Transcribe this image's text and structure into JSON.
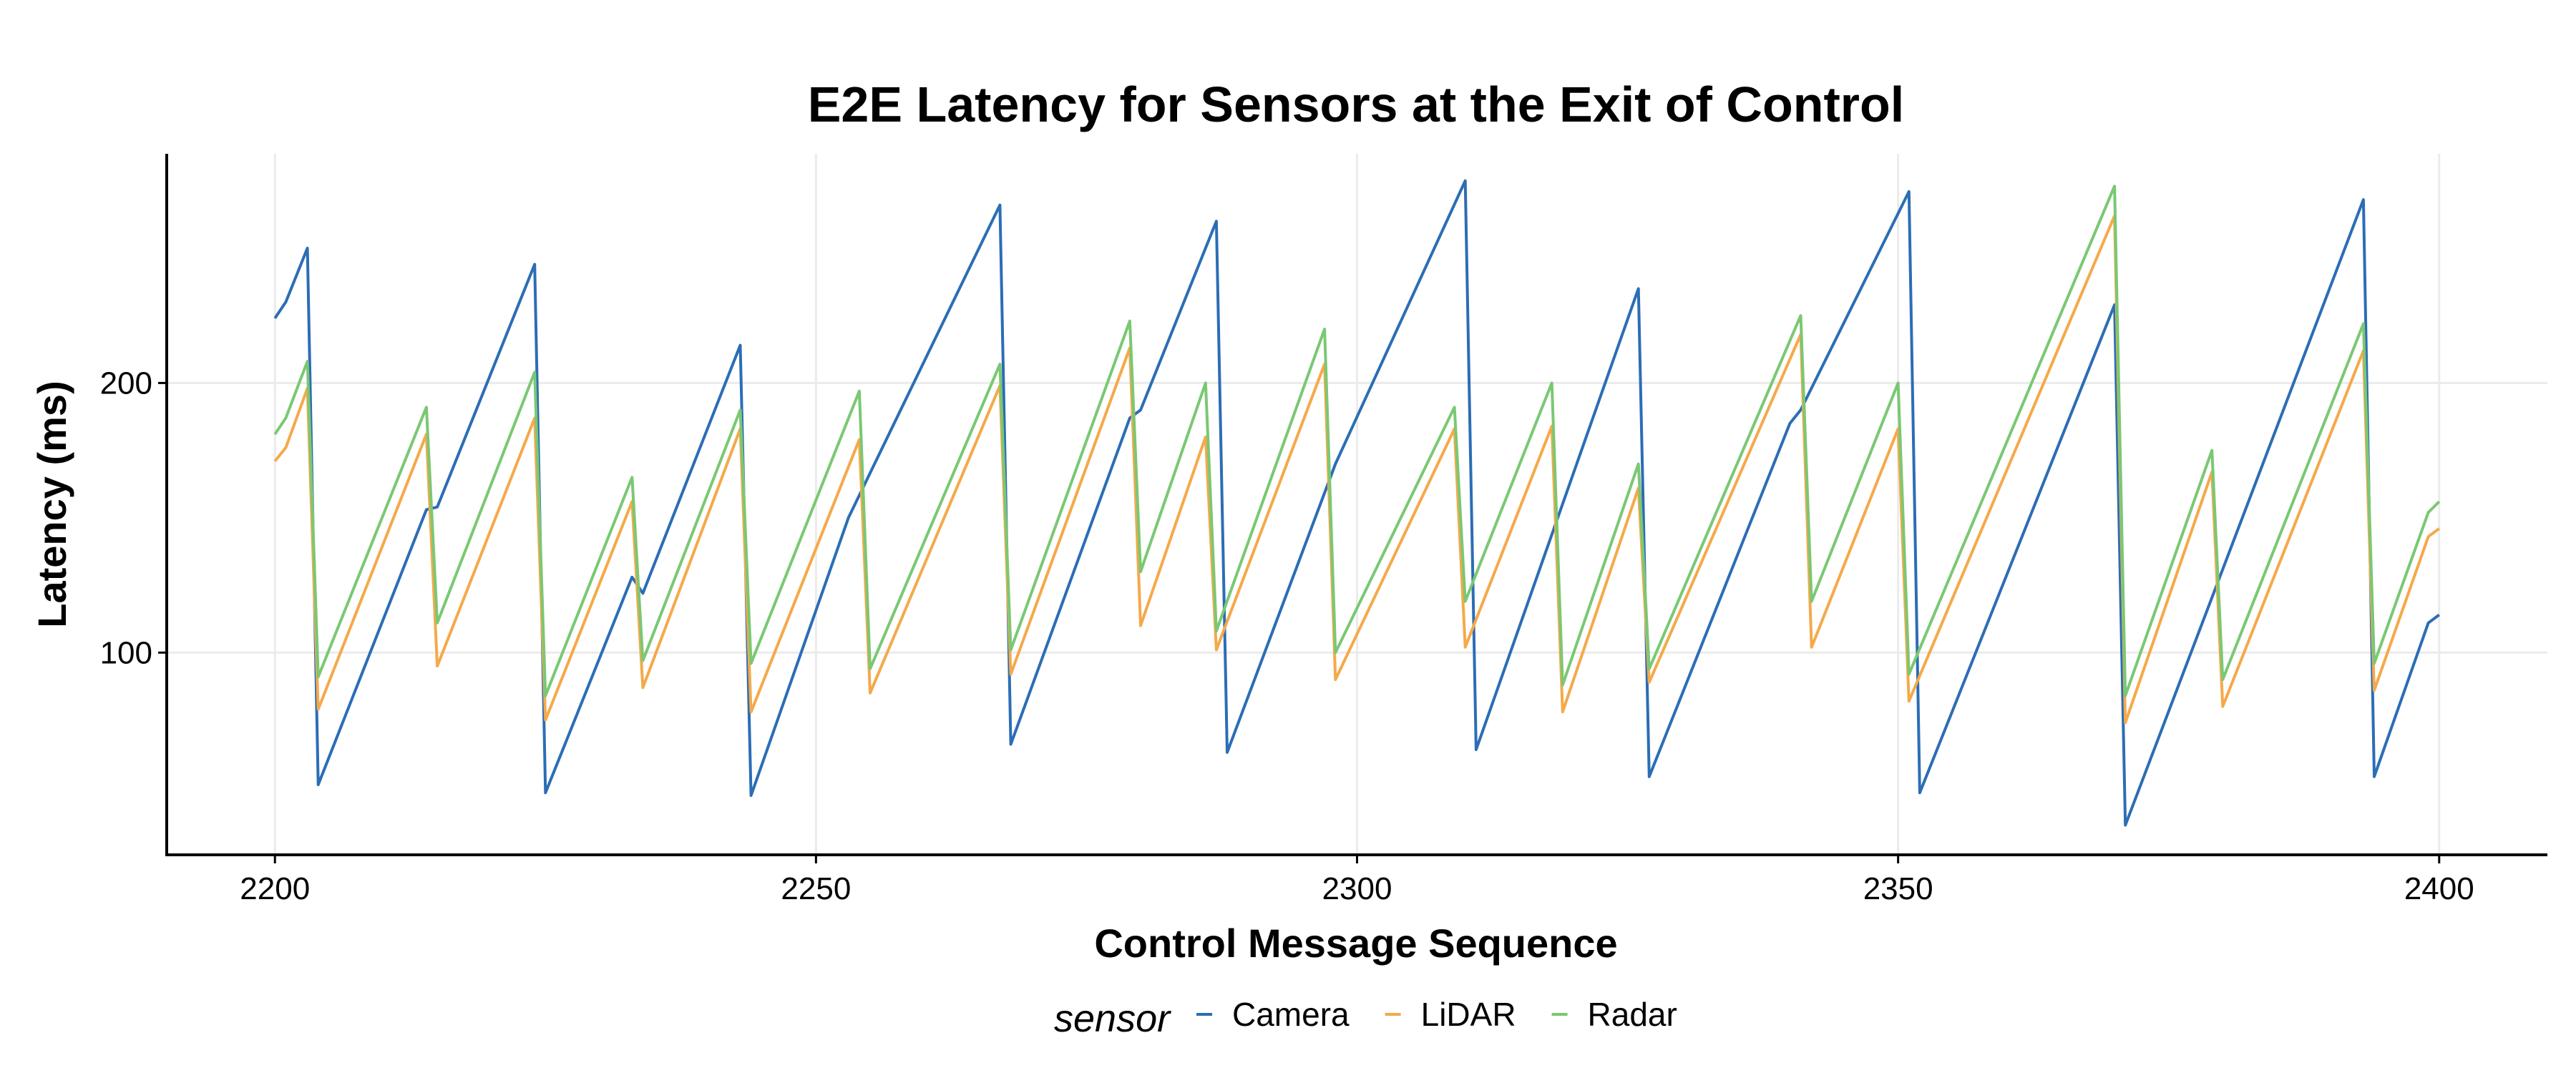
{
  "chart_data": {
    "type": "line",
    "title": "E2E Latency for Sensors at the Exit of Control",
    "xlabel": "Control Message Sequence",
    "ylabel": "Latency (ms)",
    "xlim": [
      2190,
      2410
    ],
    "ylim": [
      25,
      285
    ],
    "x_ticks": [
      2200,
      2250,
      2300,
      2350,
      2400
    ],
    "y_ticks": [
      100,
      200
    ],
    "x_tick_labels": [
      "2200",
      "2250",
      "2300",
      "2350",
      "2400"
    ],
    "y_tick_labels": [
      "100",
      "200"
    ],
    "grid": true,
    "legend": {
      "title": "sensor",
      "position": "bottom"
    },
    "series": [
      {
        "name": "Camera",
        "color": "#2c6db5",
        "points": [
          [
            2200,
            224
          ],
          [
            2201,
            230
          ],
          [
            2203,
            250
          ],
          [
            2204,
            51
          ],
          [
            2214,
            153
          ],
          [
            2215,
            154
          ],
          [
            2224,
            244
          ],
          [
            2225,
            48
          ],
          [
            2233,
            128
          ],
          [
            2234,
            122
          ],
          [
            2243,
            214
          ],
          [
            2244,
            47
          ],
          [
            2253,
            150
          ],
          [
            2267,
            266
          ],
          [
            2268,
            66
          ],
          [
            2279,
            187
          ],
          [
            2280,
            190
          ],
          [
            2287,
            260
          ],
          [
            2288,
            63
          ],
          [
            2298,
            170
          ],
          [
            2310,
            275
          ],
          [
            2311,
            64
          ],
          [
            2326,
            235
          ],
          [
            2327,
            54
          ],
          [
            2340,
            185
          ],
          [
            2341,
            190
          ],
          [
            2351,
            271
          ],
          [
            2352,
            48
          ],
          [
            2370,
            229
          ],
          [
            2371,
            36
          ],
          [
            2393,
            268
          ],
          [
            2394,
            54
          ],
          [
            2399,
            111
          ],
          [
            2400,
            114
          ]
        ]
      },
      {
        "name": "LiDAR",
        "color": "#f5a94a",
        "points": [
          [
            2200,
            171
          ],
          [
            2201,
            176
          ],
          [
            2203,
            198
          ],
          [
            2204,
            79
          ],
          [
            2214,
            181
          ],
          [
            2215,
            95
          ],
          [
            2224,
            187
          ],
          [
            2225,
            75
          ],
          [
            2233,
            156
          ],
          [
            2234,
            87
          ],
          [
            2243,
            183
          ],
          [
            2244,
            78
          ],
          [
            2254,
            179
          ],
          [
            2255,
            85
          ],
          [
            2267,
            199
          ],
          [
            2268,
            92
          ],
          [
            2279,
            213
          ],
          [
            2280,
            110
          ],
          [
            2286,
            180
          ],
          [
            2287,
            101
          ],
          [
            2297,
            207
          ],
          [
            2298,
            90
          ],
          [
            2309,
            183
          ],
          [
            2310,
            102
          ],
          [
            2318,
            184
          ],
          [
            2319,
            78
          ],
          [
            2326,
            161
          ],
          [
            2327,
            89
          ],
          [
            2341,
            218
          ],
          [
            2342,
            102
          ],
          [
            2350,
            183
          ],
          [
            2351,
            82
          ],
          [
            2370,
            262
          ],
          [
            2371,
            74
          ],
          [
            2379,
            167
          ],
          [
            2380,
            80
          ],
          [
            2393,
            212
          ],
          [
            2394,
            86
          ],
          [
            2399,
            143
          ],
          [
            2400,
            146
          ]
        ]
      },
      {
        "name": "Radar",
        "color": "#7ac873",
        "points": [
          [
            2200,
            181
          ],
          [
            2201,
            187
          ],
          [
            2203,
            208
          ],
          [
            2204,
            91
          ],
          [
            2214,
            191
          ],
          [
            2215,
            111
          ],
          [
            2224,
            204
          ],
          [
            2225,
            84
          ],
          [
            2233,
            165
          ],
          [
            2234,
            97
          ],
          [
            2243,
            190
          ],
          [
            2244,
            96
          ],
          [
            2254,
            197
          ],
          [
            2255,
            94
          ],
          [
            2267,
            207
          ],
          [
            2268,
            101
          ],
          [
            2279,
            223
          ],
          [
            2280,
            130
          ],
          [
            2286,
            200
          ],
          [
            2287,
            108
          ],
          [
            2297,
            220
          ],
          [
            2298,
            100
          ],
          [
            2309,
            191
          ],
          [
            2310,
            119
          ],
          [
            2318,
            200
          ],
          [
            2319,
            88
          ],
          [
            2326,
            170
          ],
          [
            2327,
            94
          ],
          [
            2341,
            225
          ],
          [
            2342,
            119
          ],
          [
            2350,
            200
          ],
          [
            2351,
            92
          ],
          [
            2370,
            273
          ],
          [
            2371,
            84
          ],
          [
            2379,
            175
          ],
          [
            2380,
            90
          ],
          [
            2393,
            222
          ],
          [
            2394,
            96
          ],
          [
            2399,
            152
          ],
          [
            2400,
            156
          ]
        ]
      }
    ]
  }
}
